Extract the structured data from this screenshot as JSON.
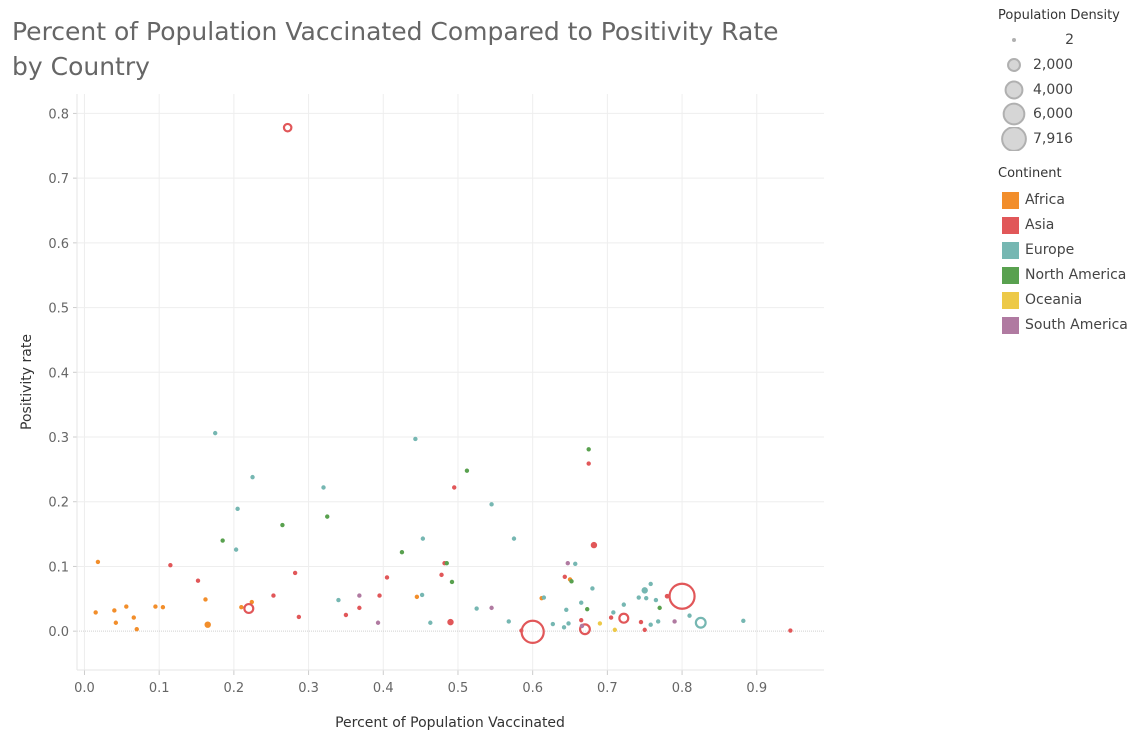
{
  "chart_data": {
    "type": "scatter",
    "title": "Percent of Population Vaccinated Compared to Positivity Rate by Country",
    "xlabel": "Percent of Population Vaccinated",
    "ylabel": "Positivity rate",
    "xlim": [
      -0.01,
      0.99
    ],
    "ylim": [
      -0.06,
      0.83
    ],
    "x_ticks": [
      0.0,
      0.1,
      0.2,
      0.3,
      0.4,
      0.5,
      0.6,
      0.7,
      0.8,
      0.9
    ],
    "x_tick_labels": [
      "0.0",
      "0.1",
      "0.2",
      "0.3",
      "0.4",
      "0.5",
      "0.6",
      "0.7",
      "0.8",
      "0.9"
    ],
    "y_ticks": [
      0.0,
      0.1,
      0.2,
      0.3,
      0.4,
      0.5,
      0.6,
      0.7,
      0.8
    ],
    "y_tick_labels": [
      "0.0",
      "0.1",
      "0.2",
      "0.3",
      "0.4",
      "0.5",
      "0.6",
      "0.7",
      "0.8"
    ],
    "grid": true,
    "size_legend": {
      "title": "Population Density",
      "entries": [
        {
          "label": "2",
          "value": 2
        },
        {
          "label": "2,000",
          "value": 2000
        },
        {
          "label": "4,000",
          "value": 4000
        },
        {
          "label": "6,000",
          "value": 6000
        },
        {
          "label": "7,916",
          "value": 7916
        }
      ]
    },
    "color_legend": {
      "title": "Continent",
      "placement": "right",
      "entries": [
        {
          "label": "Africa",
          "color": "#f28e2b"
        },
        {
          "label": "Asia",
          "color": "#e15759"
        },
        {
          "label": "Europe",
          "color": "#76b7b2"
        },
        {
          "label": "North America",
          "color": "#59a14f"
        },
        {
          "label": "Oceania",
          "color": "#edc948"
        },
        {
          "label": "South America",
          "color": "#b07aa1"
        }
      ]
    },
    "series": [
      {
        "name": "Africa",
        "points": [
          {
            "x": 0.018,
            "y": 0.107,
            "density": 40
          },
          {
            "x": 0.015,
            "y": 0.029,
            "density": 150
          },
          {
            "x": 0.04,
            "y": 0.032,
            "density": 150
          },
          {
            "x": 0.042,
            "y": 0.013,
            "density": 40
          },
          {
            "x": 0.056,
            "y": 0.038,
            "density": 40
          },
          {
            "x": 0.066,
            "y": 0.021,
            "density": 40
          },
          {
            "x": 0.07,
            "y": 0.003,
            "density": 40
          },
          {
            "x": 0.095,
            "y": 0.038,
            "density": 60
          },
          {
            "x": 0.105,
            "y": 0.037,
            "density": 40
          },
          {
            "x": 0.162,
            "y": 0.049,
            "density": 40
          },
          {
            "x": 0.165,
            "y": 0.01,
            "density": 400
          },
          {
            "x": 0.21,
            "y": 0.037,
            "density": 60
          },
          {
            "x": 0.224,
            "y": 0.045,
            "density": 40
          },
          {
            "x": 0.445,
            "y": 0.053,
            "density": 40
          },
          {
            "x": 0.612,
            "y": 0.051,
            "density": 40
          },
          {
            "x": 0.65,
            "y": 0.08,
            "density": 40
          }
        ]
      },
      {
        "name": "Asia",
        "points": [
          {
            "x": 0.272,
            "y": 0.778,
            "density": 700
          },
          {
            "x": 0.115,
            "y": 0.102,
            "density": 40
          },
          {
            "x": 0.152,
            "y": 0.078,
            "density": 40
          },
          {
            "x": 0.22,
            "y": 0.035,
            "density": 1000
          },
          {
            "x": 0.253,
            "y": 0.055,
            "density": 40
          },
          {
            "x": 0.282,
            "y": 0.09,
            "density": 150
          },
          {
            "x": 0.287,
            "y": 0.022,
            "density": 150
          },
          {
            "x": 0.35,
            "y": 0.025,
            "density": 40
          },
          {
            "x": 0.368,
            "y": 0.036,
            "density": 40
          },
          {
            "x": 0.395,
            "y": 0.055,
            "density": 150
          },
          {
            "x": 0.405,
            "y": 0.083,
            "density": 40
          },
          {
            "x": 0.478,
            "y": 0.087,
            "density": 40
          },
          {
            "x": 0.482,
            "y": 0.105,
            "density": 40
          },
          {
            "x": 0.49,
            "y": 0.014,
            "density": 400
          },
          {
            "x": 0.495,
            "y": 0.222,
            "density": 60
          },
          {
            "x": 0.585,
            "y": 0.001,
            "density": 40
          },
          {
            "x": 0.6,
            "y": -0.001,
            "density": 6200
          },
          {
            "x": 0.643,
            "y": 0.084,
            "density": 40
          },
          {
            "x": 0.665,
            "y": 0.017,
            "density": 40
          },
          {
            "x": 0.67,
            "y": 0.003,
            "density": 1200
          },
          {
            "x": 0.675,
            "y": 0.259,
            "density": 40
          },
          {
            "x": 0.682,
            "y": 0.133,
            "density": 400
          },
          {
            "x": 0.705,
            "y": 0.021,
            "density": 150
          },
          {
            "x": 0.722,
            "y": 0.02,
            "density": 1000
          },
          {
            "x": 0.745,
            "y": 0.014,
            "density": 150
          },
          {
            "x": 0.75,
            "y": 0.002,
            "density": 40
          },
          {
            "x": 0.78,
            "y": 0.054,
            "density": 200
          },
          {
            "x": 0.8,
            "y": 0.054,
            "density": 7916
          },
          {
            "x": 0.945,
            "y": 0.001,
            "density": 40
          }
        ]
      },
      {
        "name": "Europe",
        "points": [
          {
            "x": 0.175,
            "y": 0.306,
            "density": 40
          },
          {
            "x": 0.225,
            "y": 0.238,
            "density": 40
          },
          {
            "x": 0.205,
            "y": 0.189,
            "density": 60
          },
          {
            "x": 0.203,
            "y": 0.126,
            "density": 40
          },
          {
            "x": 0.32,
            "y": 0.222,
            "density": 40
          },
          {
            "x": 0.34,
            "y": 0.048,
            "density": 40
          },
          {
            "x": 0.443,
            "y": 0.297,
            "density": 40
          },
          {
            "x": 0.453,
            "y": 0.143,
            "density": 40
          },
          {
            "x": 0.452,
            "y": 0.056,
            "density": 40
          },
          {
            "x": 0.463,
            "y": 0.013,
            "density": 60
          },
          {
            "x": 0.525,
            "y": 0.035,
            "density": 60
          },
          {
            "x": 0.545,
            "y": 0.196,
            "density": 40
          },
          {
            "x": 0.568,
            "y": 0.015,
            "density": 60
          },
          {
            "x": 0.575,
            "y": 0.143,
            "density": 40
          },
          {
            "x": 0.615,
            "y": 0.052,
            "density": 40
          },
          {
            "x": 0.627,
            "y": 0.011,
            "density": 40
          },
          {
            "x": 0.642,
            "y": 0.006,
            "density": 40
          },
          {
            "x": 0.645,
            "y": 0.033,
            "density": 60
          },
          {
            "x": 0.648,
            "y": 0.012,
            "density": 40
          },
          {
            "x": 0.657,
            "y": 0.104,
            "density": 40
          },
          {
            "x": 0.665,
            "y": 0.044,
            "density": 150
          },
          {
            "x": 0.68,
            "y": 0.066,
            "density": 60
          },
          {
            "x": 0.708,
            "y": 0.029,
            "density": 40
          },
          {
            "x": 0.722,
            "y": 0.041,
            "density": 150
          },
          {
            "x": 0.742,
            "y": 0.052,
            "density": 150
          },
          {
            "x": 0.75,
            "y": 0.063,
            "density": 400
          },
          {
            "x": 0.752,
            "y": 0.051,
            "density": 40
          },
          {
            "x": 0.758,
            "y": 0.073,
            "density": 40
          },
          {
            "x": 0.765,
            "y": 0.048,
            "density": 40
          },
          {
            "x": 0.758,
            "y": 0.01,
            "density": 60
          },
          {
            "x": 0.768,
            "y": 0.015,
            "density": 60
          },
          {
            "x": 0.81,
            "y": 0.024,
            "density": 40
          },
          {
            "x": 0.825,
            "y": 0.013,
            "density": 1200
          },
          {
            "x": 0.882,
            "y": 0.016,
            "density": 60
          }
        ]
      },
      {
        "name": "North America",
        "points": [
          {
            "x": 0.185,
            "y": 0.14,
            "density": 150
          },
          {
            "x": 0.265,
            "y": 0.164,
            "density": 60
          },
          {
            "x": 0.325,
            "y": 0.177,
            "density": 40
          },
          {
            "x": 0.425,
            "y": 0.122,
            "density": 150
          },
          {
            "x": 0.485,
            "y": 0.105,
            "density": 150
          },
          {
            "x": 0.492,
            "y": 0.076,
            "density": 40
          },
          {
            "x": 0.512,
            "y": 0.248,
            "density": 40
          },
          {
            "x": 0.652,
            "y": 0.077,
            "density": 40
          },
          {
            "x": 0.673,
            "y": 0.034,
            "density": 40
          },
          {
            "x": 0.675,
            "y": 0.281,
            "density": 60
          },
          {
            "x": 0.77,
            "y": 0.036,
            "density": 40
          }
        ]
      },
      {
        "name": "Oceania",
        "points": [
          {
            "x": 0.69,
            "y": 0.012,
            "density": 40
          },
          {
            "x": 0.71,
            "y": 0.002,
            "density": 40
          }
        ]
      },
      {
        "name": "South America",
        "points": [
          {
            "x": 0.368,
            "y": 0.055,
            "density": 40
          },
          {
            "x": 0.393,
            "y": 0.013,
            "density": 40
          },
          {
            "x": 0.545,
            "y": 0.036,
            "density": 40
          },
          {
            "x": 0.647,
            "y": 0.105,
            "density": 40
          },
          {
            "x": 0.666,
            "y": 0.008,
            "density": 40
          },
          {
            "x": 0.79,
            "y": 0.015,
            "density": 40
          }
        ]
      }
    ]
  }
}
